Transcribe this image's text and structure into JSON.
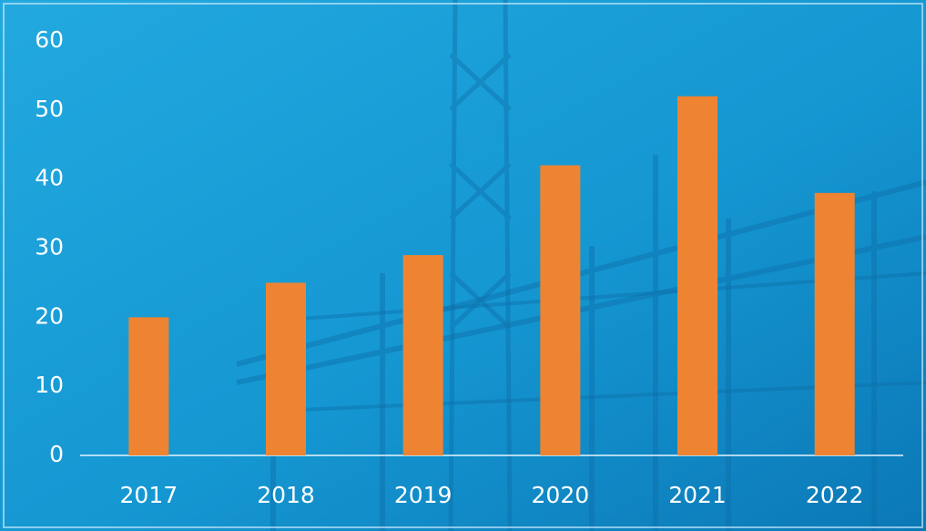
{
  "chart_data": {
    "type": "bar",
    "categories": [
      "2017",
      "2018",
      "2019",
      "2020",
      "2021",
      "2022"
    ],
    "values": [
      20,
      25,
      29,
      42,
      52,
      38
    ],
    "color": "#ee8432",
    "ylim": [
      0,
      60
    ],
    "yticks": [
      0,
      10,
      20,
      30,
      40,
      50,
      60
    ],
    "grid": false
  }
}
